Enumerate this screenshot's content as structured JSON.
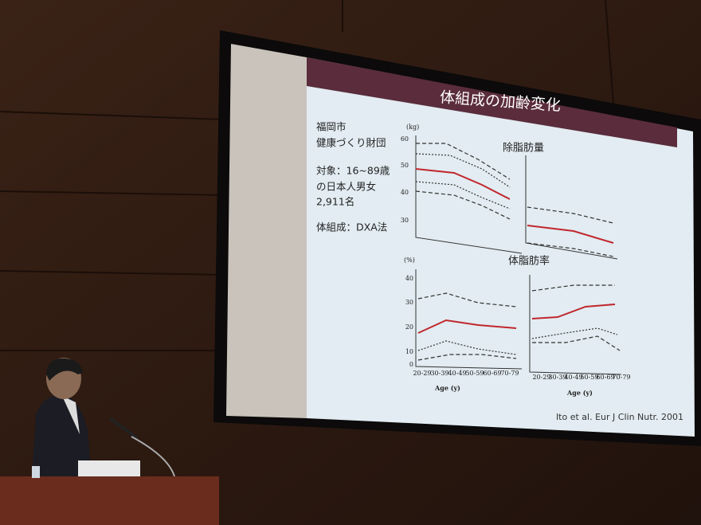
{
  "slide": {
    "title": "体組成の加齢変化",
    "info_lines": [
      "福岡市",
      "健康づくり財団",
      "対象：16~89歳",
      "の日本人男女",
      "2,911名",
      "体組成：DXA法"
    ],
    "charts": [
      {
        "title": "除脂肪量",
        "unit": "(kg)",
        "yticks": [
          "60",
          "50",
          "40",
          "30"
        ]
      },
      {
        "title": "体脂肪率",
        "unit": "(%)",
        "yticks": [
          "40",
          "30",
          "20",
          "10",
          "0"
        ]
      }
    ],
    "x_labels": [
      "20-29",
      "30-39",
      "40-49",
      "50-59",
      "60-69",
      "70-79"
    ],
    "x_axis_title": "Age (y)",
    "citation": "Ito et al. Eur J Clin Nutr. 2001"
  }
}
